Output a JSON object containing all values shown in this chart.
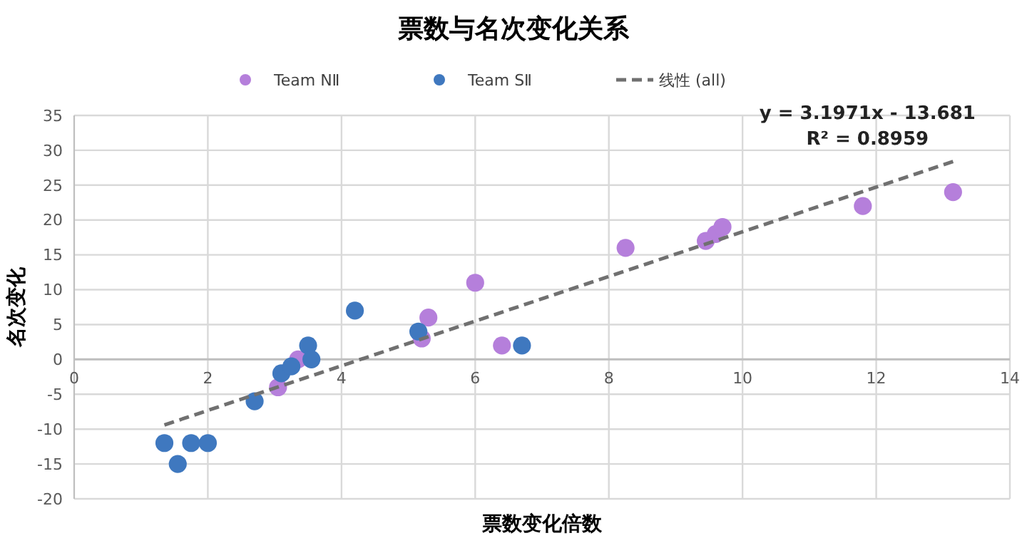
{
  "chart_data": {
    "type": "scatter",
    "title": "票数与名次变化关系",
    "xlabel": "票数变化倍数",
    "ylabel": "名次变化",
    "series": [
      {
        "name": "Team NⅡ",
        "color": "#b57fdb",
        "x": [
          3.05,
          3.35,
          5.2,
          5.3,
          6.0,
          6.4,
          8.25,
          9.45,
          9.6,
          9.7,
          11.8,
          13.15
        ],
        "values": [
          -4,
          0,
          3,
          6,
          11,
          2,
          16,
          17,
          18,
          19,
          22,
          24
        ]
      },
      {
        "name": "Team SⅡ",
        "color": "#3f78bf",
        "x": [
          1.35,
          1.55,
          1.75,
          2.0,
          2.7,
          3.1,
          3.25,
          3.5,
          3.55,
          4.2,
          5.15,
          6.7
        ],
        "values": [
          -12,
          -15,
          -12,
          -12,
          -6,
          -2,
          -1,
          2,
          0,
          7,
          4,
          2
        ]
      },
      {
        "name": "线性 (all)",
        "type": "line",
        "line_style": "dashed",
        "marker": "none",
        "color": "#707070",
        "x": [
          1.35,
          13.15
        ],
        "values": [
          -9.4,
          28.4
        ]
      }
    ],
    "annotations": [
      "y = 3.1971x - 13.681",
      "R² = 0.8959"
    ],
    "xlim": [
      0,
      14
    ],
    "xticks": [
      0,
      2,
      4,
      6,
      8,
      10,
      12,
      14
    ],
    "ylim": [
      -20,
      35
    ],
    "yticks": [
      -20,
      -15,
      -10,
      -5,
      0,
      5,
      10,
      15,
      20,
      25,
      30,
      35
    ],
    "grid": true,
    "legend": "top",
    "marker": "circle"
  }
}
